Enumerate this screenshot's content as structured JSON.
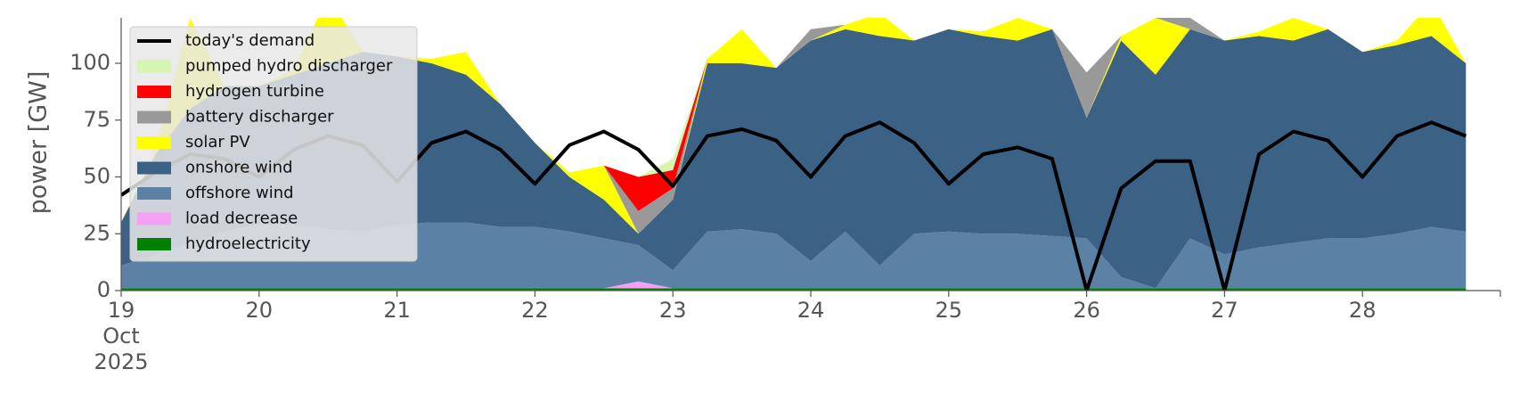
{
  "chart_data": {
    "type": "stacked-area",
    "y_label": "power [GW]",
    "x": [
      "2025-10-19T00:00",
      "2025-10-19T06:00",
      "2025-10-19T12:00",
      "2025-10-19T18:00",
      "2025-10-20T00:00",
      "2025-10-20T06:00",
      "2025-10-20T12:00",
      "2025-10-20T18:00",
      "2025-10-21T00:00",
      "2025-10-21T06:00",
      "2025-10-21T12:00",
      "2025-10-21T18:00",
      "2025-10-22T00:00",
      "2025-10-22T06:00",
      "2025-10-22T12:00",
      "2025-10-22T18:00",
      "2025-10-23T00:00",
      "2025-10-23T06:00",
      "2025-10-23T12:00",
      "2025-10-23T18:00",
      "2025-10-24T00:00",
      "2025-10-24T06:00",
      "2025-10-24T12:00",
      "2025-10-24T18:00",
      "2025-10-25T00:00",
      "2025-10-25T06:00",
      "2025-10-25T12:00",
      "2025-10-25T18:00",
      "2025-10-26T00:00",
      "2025-10-26T06:00",
      "2025-10-26T12:00",
      "2025-10-26T18:00",
      "2025-10-27T00:00",
      "2025-10-27T06:00",
      "2025-10-27T12:00",
      "2025-10-27T18:00",
      "2025-10-28T00:00",
      "2025-10-28T06:00",
      "2025-10-28T12:00",
      "2025-10-28T18:00"
    ],
    "series": [
      {
        "name": "hydroelectricity",
        "color": "#008000",
        "values": [
          1,
          1,
          1,
          1,
          1,
          1,
          1,
          1,
          1,
          1,
          1,
          1,
          1,
          1,
          1,
          1,
          1,
          1,
          1,
          1,
          1,
          1,
          1,
          1,
          1,
          1,
          1,
          1,
          1,
          1,
          1,
          1,
          1,
          1,
          1,
          1,
          1,
          1,
          1,
          1
        ]
      },
      {
        "name": "load decrease",
        "color": "#f5a0f5",
        "values": [
          0,
          0,
          0,
          0,
          0,
          0,
          0,
          0,
          0,
          0,
          0,
          0,
          0,
          0,
          0,
          3,
          0,
          0,
          0,
          0,
          0,
          0,
          0,
          0,
          0,
          0,
          0,
          0,
          0,
          0,
          0,
          0,
          0,
          0,
          0,
          0,
          0,
          0,
          0,
          0
        ]
      },
      {
        "name": "offshore wind",
        "color": "#5b82a5",
        "values": [
          10,
          15,
          20,
          25,
          28,
          28,
          26,
          25,
          28,
          29,
          29,
          27,
          27,
          25,
          22,
          16,
          8,
          25,
          26,
          24,
          12,
          25,
          10,
          24,
          25,
          24,
          24,
          23,
          22,
          5,
          0,
          22,
          15,
          18,
          20,
          22,
          22,
          24,
          27,
          25
        ]
      },
      {
        "name": "onshore wind",
        "color": "#3b6185",
        "values": [
          19,
          44,
          59,
          64,
          61,
          66,
          73,
          79,
          74,
          70,
          65,
          54,
          37,
          24,
          17,
          5,
          31,
          74,
          73,
          73,
          97,
          89,
          101,
          85,
          89,
          87,
          85,
          91,
          53,
          104,
          94,
          92,
          94,
          93,
          89,
          92,
          82,
          83,
          84,
          74
        ]
      },
      {
        "name": "solar PV",
        "color": "#ffff00",
        "values": [
          0,
          2,
          40,
          0,
          0,
          2,
          30,
          0,
          0,
          2,
          10,
          0,
          0,
          2,
          15,
          0,
          0,
          2,
          15,
          0,
          0,
          2,
          10,
          0,
          0,
          2,
          10,
          0,
          0,
          2,
          25,
          0,
          0,
          2,
          10,
          0,
          0,
          2,
          15,
          0
        ]
      },
      {
        "name": "battery discharger",
        "color": "#999999",
        "values": [
          0,
          0,
          0,
          0,
          0,
          0,
          0,
          0,
          0,
          0,
          0,
          0,
          0,
          0,
          0,
          10,
          5,
          0,
          0,
          0,
          5,
          0,
          0,
          0,
          0,
          0,
          0,
          0,
          20,
          0,
          0,
          5,
          0,
          0,
          0,
          0,
          0,
          0,
          0,
          0
        ]
      },
      {
        "name": "hydrogen turbine",
        "color": "#ff0000",
        "values": [
          0,
          0,
          0,
          0,
          0,
          0,
          0,
          0,
          0,
          0,
          0,
          0,
          0,
          0,
          0,
          15,
          8,
          0,
          0,
          0,
          0,
          0,
          0,
          0,
          0,
          0,
          0,
          0,
          0,
          0,
          0,
          0,
          0,
          0,
          0,
          0,
          0,
          0,
          0,
          0
        ]
      },
      {
        "name": "pumped hydro discharger",
        "color": "#d6f5b0",
        "values": [
          0,
          0,
          0,
          0,
          0,
          0,
          0,
          0,
          0,
          0,
          0,
          0,
          0,
          0,
          0,
          0,
          5,
          0,
          0,
          0,
          0,
          0,
          0,
          0,
          0,
          0,
          0,
          0,
          0,
          0,
          0,
          0,
          0,
          0,
          0,
          0,
          0,
          0,
          0,
          0
        ]
      }
    ],
    "demand": {
      "name": "today's demand",
      "color": "#000000",
      "values": [
        42,
        52,
        60,
        58,
        50,
        62,
        68,
        64,
        48,
        65,
        70,
        62,
        47,
        64,
        70,
        62,
        46,
        68,
        71,
        66,
        50,
        68,
        74,
        65,
        47,
        60,
        63,
        58,
        0,
        45,
        57,
        57,
        0,
        60,
        70,
        66,
        50,
        68,
        74,
        68
      ]
    },
    "xlim": [
      "2025-10-19T00:00",
      "2025-10-29T00:00"
    ],
    "xticks": [
      {
        "value": "2025-10-19T00:00",
        "label": "19\nOct\n2025"
      },
      {
        "value": "2025-10-20T00:00",
        "label": "20"
      },
      {
        "value": "2025-10-21T00:00",
        "label": "21"
      },
      {
        "value": "2025-10-22T00:00",
        "label": "22"
      },
      {
        "value": "2025-10-23T00:00",
        "label": "23"
      },
      {
        "value": "2025-10-24T00:00",
        "label": "24"
      },
      {
        "value": "2025-10-25T00:00",
        "label": "25"
      },
      {
        "value": "2025-10-26T00:00",
        "label": "26"
      },
      {
        "value": "2025-10-27T00:00",
        "label": "27"
      },
      {
        "value": "2025-10-28T00:00",
        "label": "28"
      }
    ],
    "ylim": [
      0,
      120
    ],
    "yticks": [
      0,
      25,
      50,
      75,
      100
    ],
    "legend": "upper-left"
  }
}
